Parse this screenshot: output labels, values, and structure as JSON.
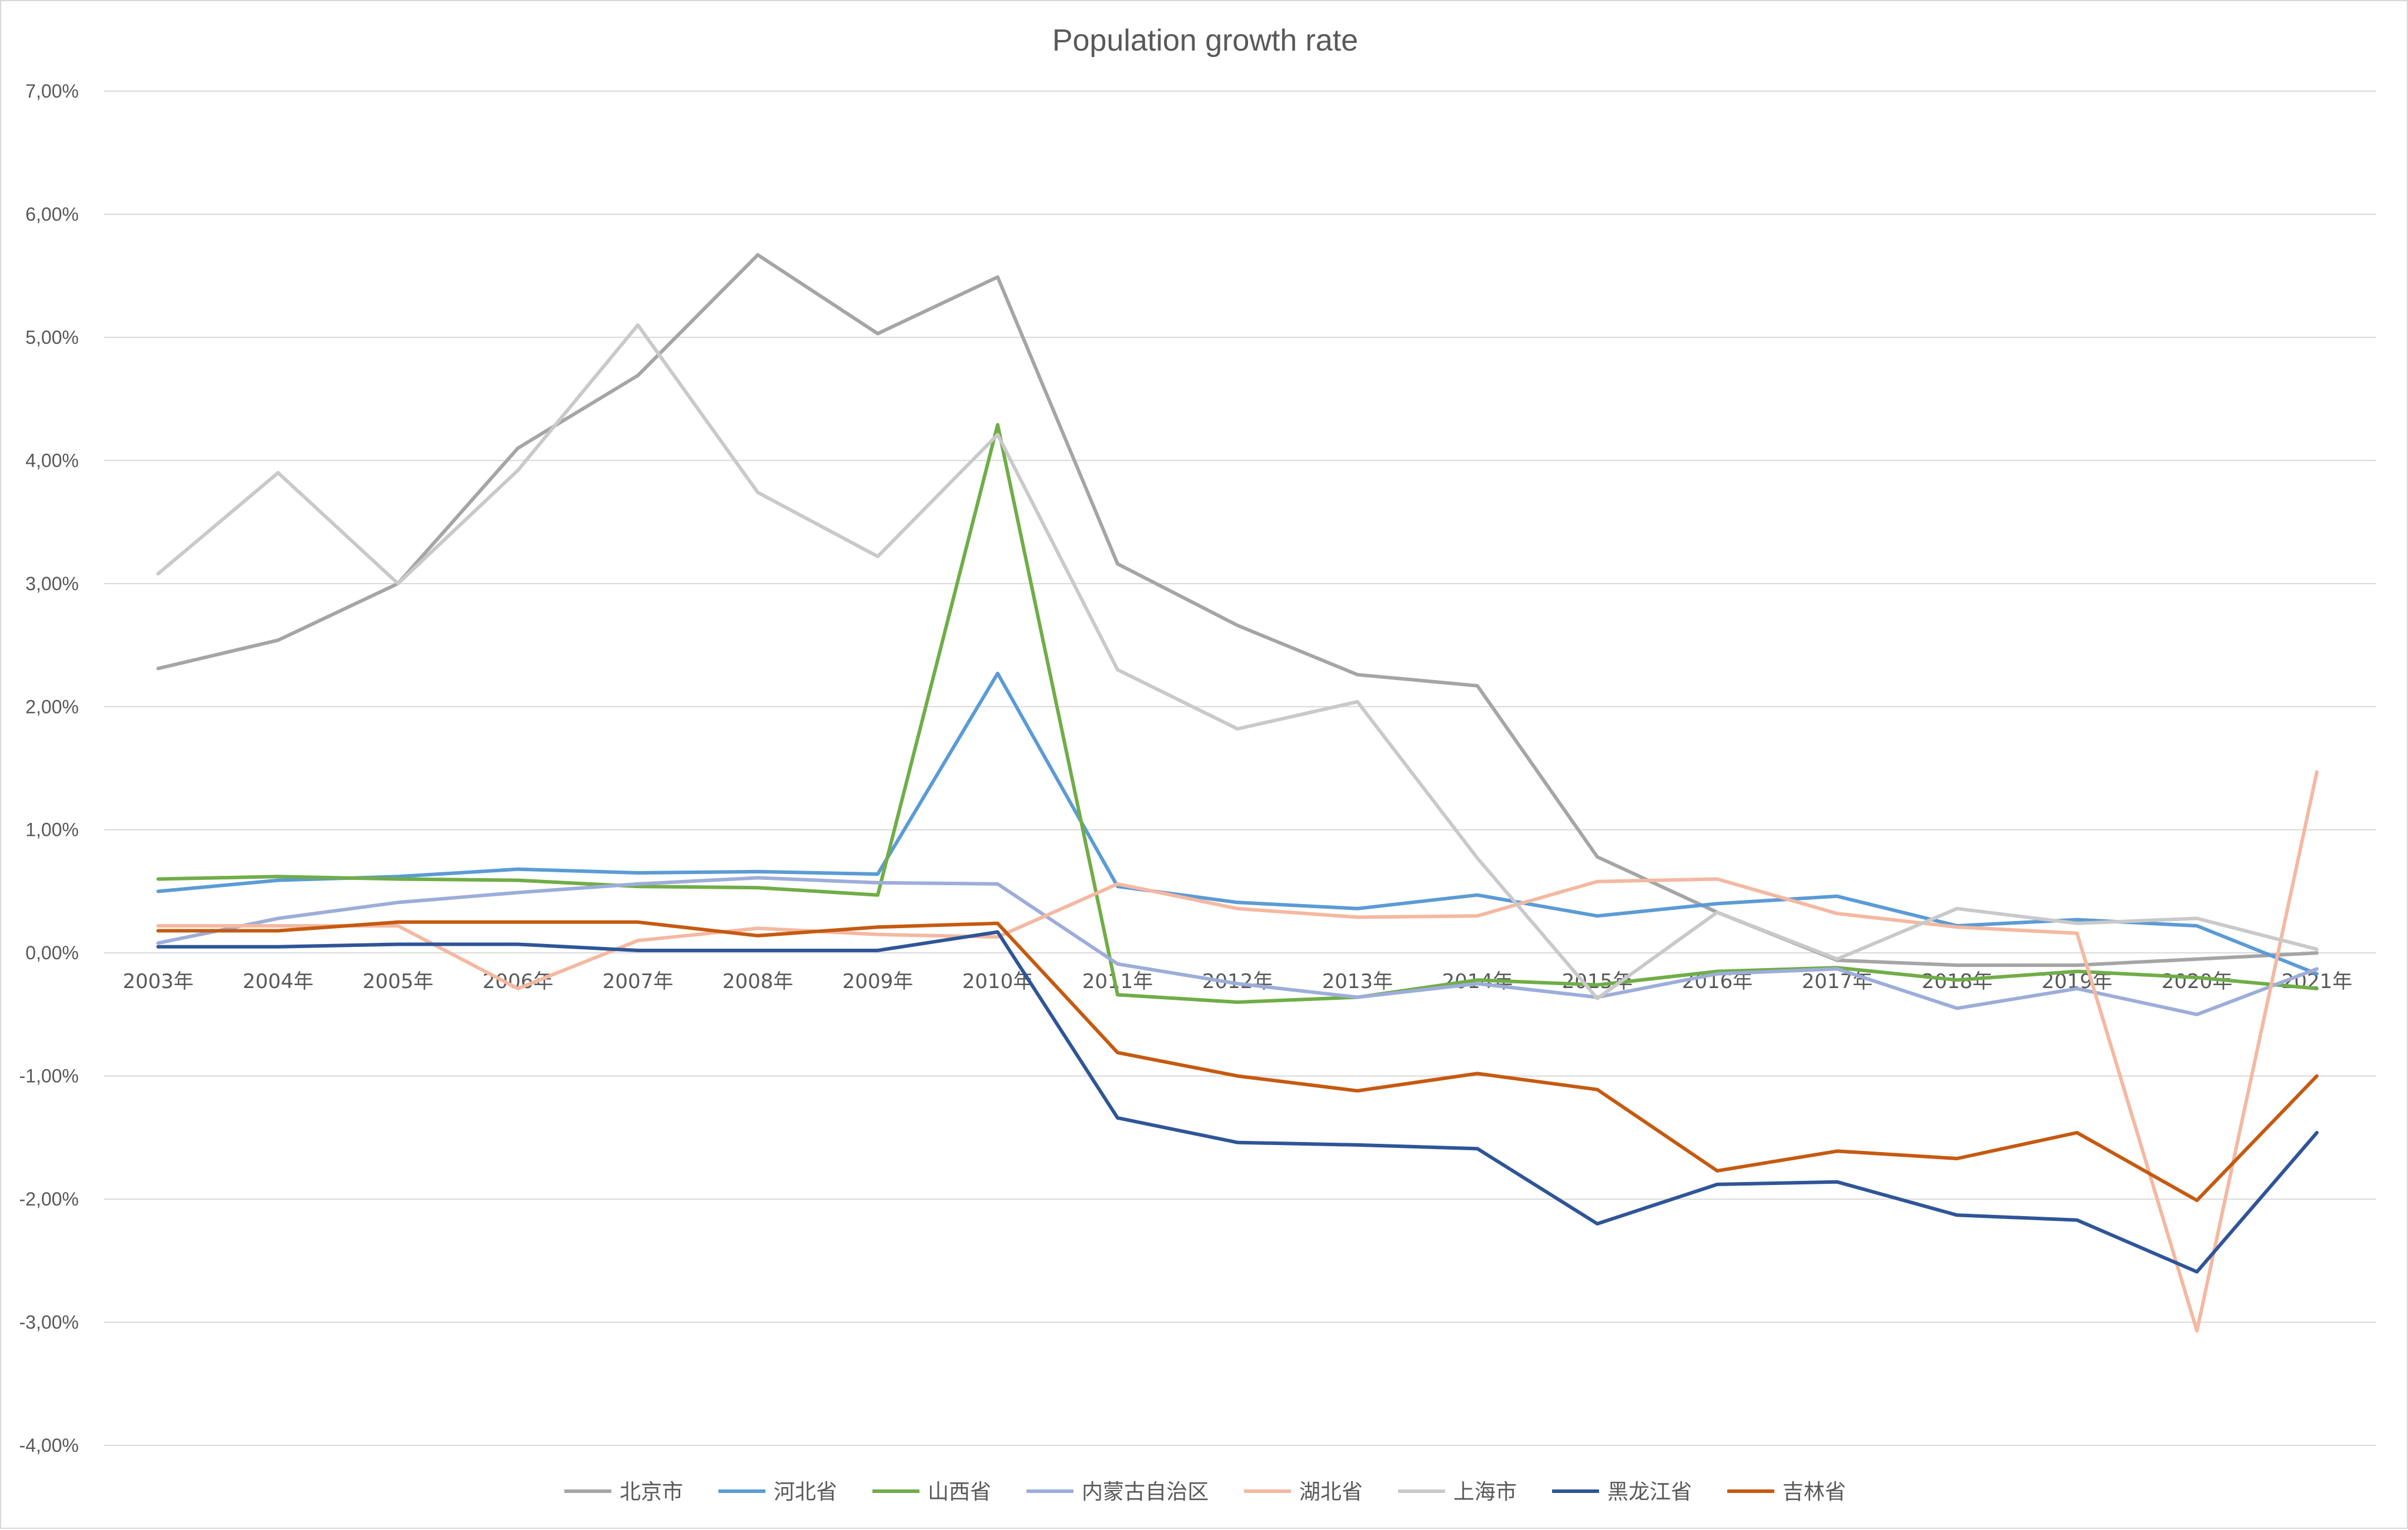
{
  "chart_data": {
    "type": "line",
    "title": "Population growth rate",
    "categories": [
      "2003年",
      "2004年",
      "2005年",
      "2006年",
      "2007年",
      "2008年",
      "2009年",
      "2010年",
      "2011年",
      "2012年",
      "2013年",
      "2014年",
      "2015年",
      "2016年",
      "2017年",
      "2018年",
      "2019年",
      "2020年",
      "2021年"
    ],
    "ylim": [
      -4,
      7
    ],
    "yticks": [
      7,
      6,
      5,
      4,
      3,
      2,
      1,
      0,
      -1,
      -2,
      -3,
      -4
    ],
    "ytick_labels": [
      "7,00%",
      "6,00%",
      "5,00%",
      "4,00%",
      "3,00%",
      "2,00%",
      "1,00%",
      "0,00%",
      "-1,00%",
      "-2,00%",
      "-3,00%",
      "-4,00%"
    ],
    "grid": true,
    "legend_position": "bottom",
    "series": [
      {
        "name": "北京市",
        "color": "#a5a5a5",
        "values": [
          2.31,
          2.54,
          3.0,
          4.1,
          4.69,
          5.67,
          5.03,
          5.49,
          3.16,
          2.66,
          2.26,
          2.17,
          0.78,
          0.33,
          -0.06,
          -0.1,
          -0.1,
          -0.05,
          0.0
        ]
      },
      {
        "name": "河北省",
        "color": "#5b9bd5",
        "values": [
          0.5,
          0.59,
          0.62,
          0.68,
          0.65,
          0.66,
          0.64,
          2.27,
          0.54,
          0.41,
          0.36,
          0.47,
          0.3,
          0.4,
          0.46,
          0.22,
          0.27,
          0.22,
          -0.17
        ]
      },
      {
        "name": "山西省",
        "color": "#70ad47",
        "values": [
          0.6,
          0.62,
          0.6,
          0.59,
          0.54,
          0.53,
          0.47,
          4.29,
          -0.34,
          -0.4,
          -0.36,
          -0.22,
          -0.26,
          -0.15,
          -0.12,
          -0.22,
          -0.15,
          -0.2,
          -0.29
        ]
      },
      {
        "name": "内蒙古自治区",
        "color": "#9dadd9",
        "values": [
          0.08,
          0.28,
          0.41,
          0.49,
          0.56,
          0.61,
          0.57,
          0.56,
          -0.09,
          -0.25,
          -0.36,
          -0.25,
          -0.36,
          -0.17,
          -0.13,
          -0.45,
          -0.29,
          -0.5,
          -0.13
        ]
      },
      {
        "name": "湖北省",
        "color": "#f4b8a1",
        "values": [
          0.22,
          0.22,
          0.22,
          -0.29,
          0.1,
          0.2,
          0.15,
          0.13,
          0.56,
          0.36,
          0.29,
          0.3,
          0.58,
          0.6,
          0.32,
          0.21,
          0.16,
          -3.07,
          1.47
        ]
      },
      {
        "name": "上海市",
        "color": "#c9c9c9",
        "values": [
          3.08,
          3.9,
          3.0,
          3.92,
          5.1,
          3.74,
          3.22,
          4.21,
          2.3,
          1.82,
          2.04,
          0.77,
          -0.37,
          0.33,
          -0.05,
          0.36,
          0.24,
          0.28,
          0.03
        ]
      },
      {
        "name": "黑龙江省",
        "color": "#2f5597",
        "values": [
          0.05,
          0.05,
          0.07,
          0.07,
          0.02,
          0.02,
          0.02,
          0.17,
          -1.34,
          -1.54,
          -1.56,
          -1.59,
          -2.2,
          -1.88,
          -1.86,
          -2.13,
          -2.17,
          -2.59,
          -1.46
        ]
      },
      {
        "name": "吉林省",
        "color": "#c55a11",
        "values": [
          0.18,
          0.18,
          0.25,
          0.25,
          0.25,
          0.14,
          0.21,
          0.24,
          -0.81,
          -1.0,
          -1.12,
          -0.98,
          -1.11,
          -1.77,
          -1.61,
          -1.67,
          -1.46,
          -2.01,
          -1.0
        ]
      }
    ]
  }
}
